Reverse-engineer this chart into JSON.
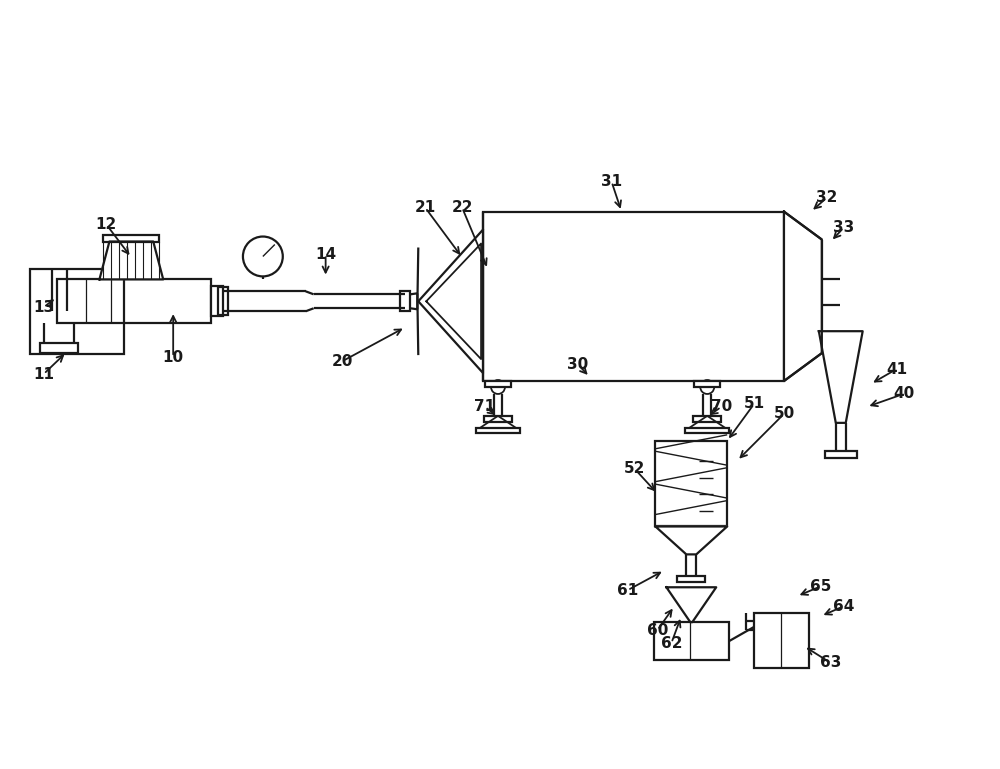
{
  "bg_color": "#ffffff",
  "lc": "#1a1a1a",
  "lw": 1.6,
  "fig_w": 10.0,
  "fig_h": 7.69
}
